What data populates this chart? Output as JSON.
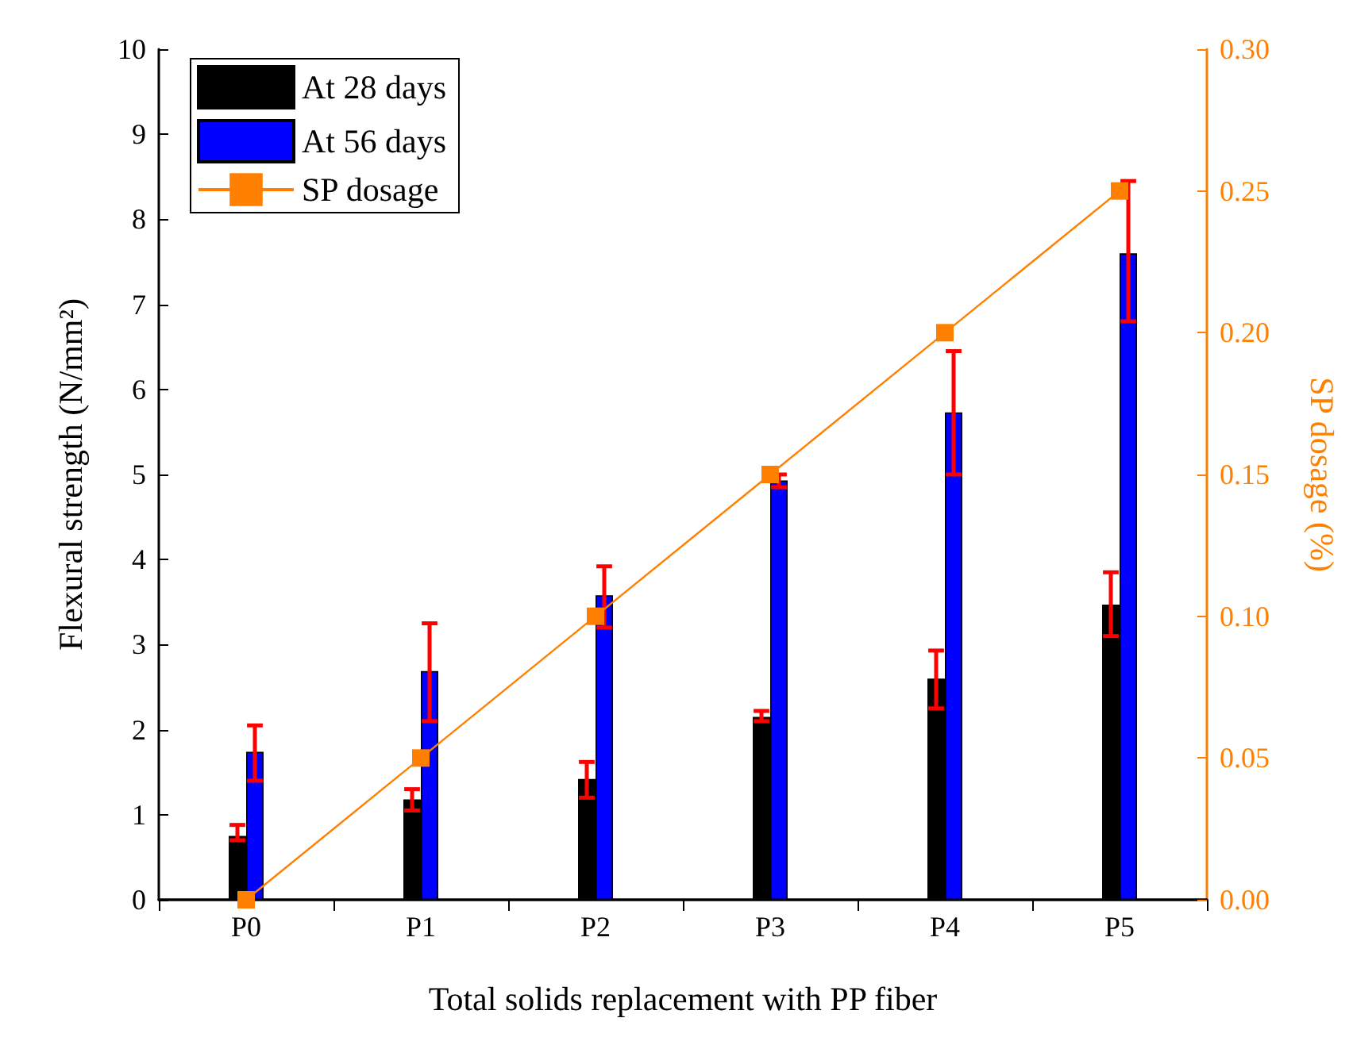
{
  "chart_data": {
    "type": "bar",
    "xlabel": "Total solids replacement with PP fiber",
    "ylabel": "Flexural strength (N/mm²)",
    "y2label": "SP dosage (%)",
    "categories": [
      "P0",
      "P1",
      "P2",
      "P3",
      "P4",
      "P5"
    ],
    "series": [
      {
        "name": "At 28 days",
        "color": "#000000",
        "values": [
          0.75,
          1.18,
          1.42,
          2.15,
          2.6,
          3.47
        ],
        "errors": [
          [
            0.7,
            0.88
          ],
          [
            1.05,
            1.3
          ],
          [
            1.2,
            1.62
          ],
          [
            2.1,
            2.22
          ],
          [
            2.25,
            2.93
          ],
          [
            3.1,
            3.85
          ]
        ]
      },
      {
        "name": "At 56 days",
        "color": "#0000ff",
        "values": [
          1.74,
          2.69,
          3.58,
          4.93,
          5.73,
          7.6
        ],
        "errors": [
          [
            1.4,
            2.05
          ],
          [
            2.1,
            3.25
          ],
          [
            3.2,
            3.92
          ],
          [
            4.85,
            5.0
          ],
          [
            5.0,
            6.45
          ],
          [
            6.8,
            8.45
          ]
        ]
      },
      {
        "name": "SP dosage",
        "type": "line",
        "axis": "y2",
        "color": "#ff8000",
        "marker": "square",
        "values": [
          0,
          0.05,
          0.1,
          0.15,
          0.2,
          0.25
        ]
      }
    ],
    "ylim": [
      0,
      10
    ],
    "yticks": [
      0,
      1,
      2,
      3,
      4,
      5,
      6,
      7,
      8,
      9,
      10
    ],
    "y2lim": [
      0,
      0.3
    ],
    "y2ticks": [
      {
        "value": 0,
        "label": "0.00"
      },
      {
        "value": 0.05,
        "label": "0.05"
      },
      {
        "value": 0.1,
        "label": "0.10"
      },
      {
        "value": 0.15,
        "label": "0.15"
      },
      {
        "value": 0.2,
        "label": "0.20"
      },
      {
        "value": 0.25,
        "label": "0.25"
      },
      {
        "value": 0.3,
        "label": "0.30"
      }
    ],
    "grid": false,
    "legend": "top left"
  }
}
